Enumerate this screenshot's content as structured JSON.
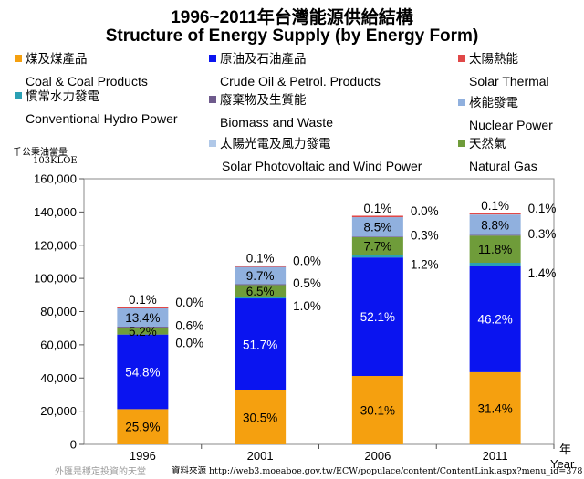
{
  "chart_data": {
    "type": "stacked-bar",
    "title": "1996~2011年台灣能源供給結構",
    "subtitle": "Structure of Energy Supply (by Energy Form)",
    "ylabel_zh": "千公秉油當量",
    "ylabel_unit": "103KLOE",
    "xlabel_zh": "年",
    "xlabel_en": "Year",
    "ylim": [
      0,
      160000
    ],
    "yticks": [
      0,
      20000,
      40000,
      60000,
      80000,
      100000,
      120000,
      140000,
      160000
    ],
    "ytick_labels": [
      "0",
      "20,000",
      "40,000",
      "60,000",
      "80,000",
      "100,000",
      "120,000",
      "140,000",
      "160,000"
    ],
    "categories": [
      "1996",
      "2001",
      "2006",
      "2011"
    ],
    "totals": [
      82000,
      107000,
      137000,
      138500
    ],
    "series": [
      {
        "key": "coal",
        "name_zh": "煤及煤產品",
        "name_en": "Coal & Coal Products",
        "color": "#f5a00f",
        "shares": [
          25.9,
          30.5,
          30.1,
          31.4
        ],
        "labels": [
          "25.9%",
          "30.5%",
          "30.1%",
          "31.4%"
        ]
      },
      {
        "key": "oil",
        "name_zh": "原油及石油產品",
        "name_en": "Crude Oil & Petrol. Products",
        "color": "#0a14f0",
        "shares": [
          54.8,
          51.7,
          52.1,
          46.2
        ],
        "labels": [
          "54.8%",
          "51.7%",
          "52.1%",
          "46.2%"
        ]
      },
      {
        "key": "hydro",
        "name_zh": "慣常水力發電",
        "name_en": "Conventional Hydro Power",
        "color": "#2aa0b4",
        "shares": [
          0.0,
          1.0,
          1.2,
          1.4
        ],
        "labels": [
          "0.0%",
          "1.0%",
          "1.2%",
          "1.4%"
        ]
      },
      {
        "key": "gas",
        "name_zh": "天然氣",
        "name_en": "Natural Gas",
        "color": "#6f9c3a",
        "shares": [
          5.2,
          6.5,
          7.7,
          11.8
        ],
        "labels": [
          "5.2%",
          "6.5%",
          "7.7%",
          "11.8%"
        ]
      },
      {
        "key": "biomass",
        "name_zh": "廢棄物及生質能",
        "name_en": "Biomass and Waste",
        "color": "#6e5a8c",
        "shares": [
          0.6,
          0.5,
          0.3,
          0.3
        ],
        "labels": [
          "0.6%",
          "0.5%",
          "0.3%",
          "0.3%"
        ]
      },
      {
        "key": "nuclear",
        "name_zh": "核能發電",
        "name_en": "Nuclear Power",
        "color": "#90b0de",
        "shares": [
          13.4,
          9.7,
          8.5,
          8.8
        ],
        "labels": [
          "13.4%",
          "9.7%",
          "8.5%",
          "8.8%"
        ]
      },
      {
        "key": "pvwind",
        "name_zh": "太陽光電及風力發電",
        "name_en": "Solar Photovoltaic and Wind Power",
        "color": "#b0c8e8",
        "shares": [
          0.0,
          0.0,
          0.0,
          0.1
        ],
        "labels": [
          "0.0%",
          "0.0%",
          "0.0%",
          "0.1%"
        ]
      },
      {
        "key": "solarthermal",
        "name_zh": "太陽熱能",
        "name_en": "Solar Thermal",
        "color": "#e04848",
        "shares": [
          0.1,
          0.1,
          0.1,
          0.1
        ],
        "labels": [
          "0.1%",
          "0.1%",
          "0.1%",
          "0.1%"
        ]
      }
    ]
  },
  "footer": {
    "left_note": "外匯是穩定投資的天堂",
    "source": "資料來源 http://web3.moeaboe.gov.tw/ECW/populace/content/ContentLink.aspx?menu_id=378"
  }
}
